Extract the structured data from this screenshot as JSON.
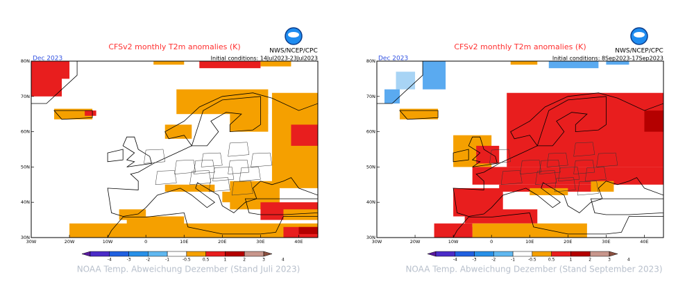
{
  "panels": [
    {
      "title": "CFSv2 monthly T2m anomalies (K)",
      "month": "Dec 2023",
      "agency": "NWS/NCEP/CPC",
      "initial_conditions": "Initial conditions: 14Jul2023-23Jul2023",
      "lat_labels": [
        "80N",
        "70N",
        "60N",
        "50N",
        "40N",
        "30N"
      ],
      "lon_labels": [
        "30W",
        "20W",
        "10W",
        "0",
        "10E",
        "20E",
        "30E",
        "40E"
      ],
      "colorbar_ticks": [
        -4,
        -3,
        -2,
        -1,
        -0.5,
        0.5,
        1,
        2,
        3,
        4
      ],
      "caption": "NOAA Temp. Abweichung Dezember (Stand Juli 2023)"
    },
    {
      "title": "CFSv2 monthly T2m anomalies (K)",
      "month": "Dec 2023",
      "agency": "NWS/NCEP/CPC",
      "initial_conditions": "Initial conditions: 8Sep2023-17Sep2023",
      "lat_labels": [
        "80N",
        "70N",
        "60N",
        "50N",
        "40N",
        "30N"
      ],
      "lon_labels": [
        "30W",
        "20W",
        "10W",
        "0",
        "10E",
        "20E",
        "30E",
        "40E"
      ],
      "colorbar_ticks": [
        -4,
        -3,
        -2,
        -1,
        -0.5,
        0.5,
        1,
        2,
        3,
        4
      ],
      "caption": "NOAA Temp. Abweichung Dezember (Stand September 2023)"
    }
  ]
}
